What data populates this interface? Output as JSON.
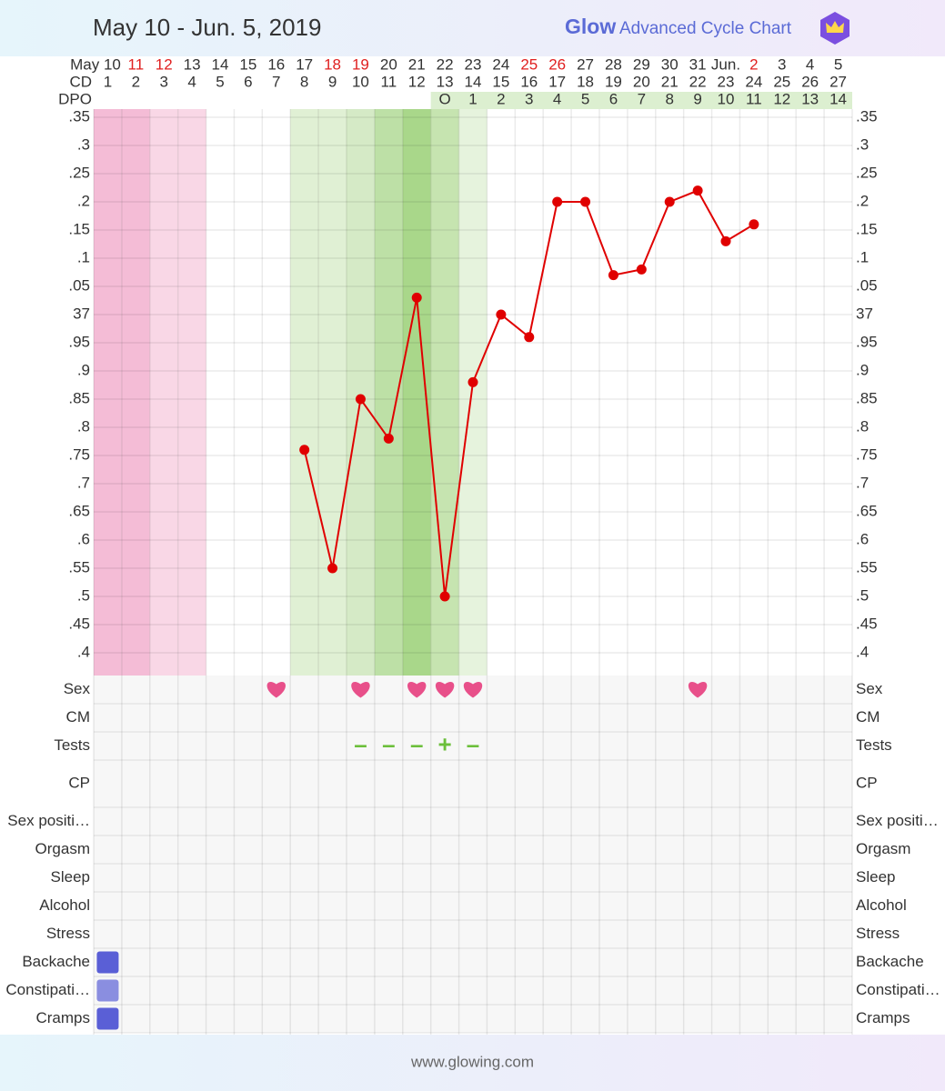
{
  "header": {
    "title": "May 10 - Jun. 5, 2019",
    "logo_brand": "Glow",
    "logo_text": "Advanced Cycle Chart"
  },
  "chart_data": {
    "type": "line",
    "categories": [
      "May 10",
      "11",
      "12",
      "13",
      "14",
      "15",
      "16",
      "17",
      "18",
      "19",
      "20",
      "21",
      "22",
      "23",
      "24",
      "25",
      "26",
      "27",
      "28",
      "29",
      "30",
      "31",
      "Jun.",
      "2",
      "3",
      "4",
      "5"
    ],
    "category_colors": [
      "#333333",
      "#e02020",
      "#e02020",
      "#333333",
      "#333333",
      "#333333",
      "#333333",
      "#333333",
      "#e02020",
      "#e02020",
      "#333333",
      "#333333",
      "#333333",
      "#333333",
      "#333333",
      "#e02020",
      "#e02020",
      "#333333",
      "#333333",
      "#333333",
      "#333333",
      "#333333",
      "#333333",
      "#e02020",
      "#333333",
      "#333333",
      "#333333"
    ],
    "cd_label": "CD",
    "cd": [
      1,
      2,
      3,
      4,
      5,
      6,
      7,
      8,
      9,
      10,
      11,
      12,
      13,
      14,
      15,
      16,
      17,
      18,
      19,
      20,
      21,
      22,
      23,
      24,
      25,
      26,
      27
    ],
    "dpo_label": "DPO",
    "dpo": [
      null,
      null,
      null,
      null,
      null,
      null,
      null,
      null,
      null,
      null,
      null,
      null,
      "O",
      1,
      2,
      3,
      4,
      5,
      6,
      7,
      8,
      9,
      10,
      11,
      12,
      13,
      14
    ],
    "dpo_background": "#dcefd0",
    "series": [
      {
        "color": "#e00000",
        "values": [
          null,
          null,
          null,
          null,
          null,
          null,
          null,
          36.76,
          36.55,
          36.85,
          36.78,
          37.03,
          36.5,
          36.88,
          37.0,
          36.96,
          37.2,
          37.2,
          37.07,
          37.08,
          37.2,
          37.22,
          37.13,
          37.16,
          null,
          null,
          null
        ]
      }
    ],
    "ylim": [
      36.35,
      37.35
    ],
    "yticks": [
      {
        "value": 37.35,
        "label": ".35"
      },
      {
        "value": 37.3,
        "label": ".3"
      },
      {
        "value": 37.25,
        "label": ".25"
      },
      {
        "value": 37.2,
        "label": ".2"
      },
      {
        "value": 37.15,
        "label": ".15"
      },
      {
        "value": 37.1,
        "label": ".1"
      },
      {
        "value": 37.05,
        "label": ".05"
      },
      37,
      {
        "value": 36.95,
        "label": ".95"
      },
      {
        "value": 36.9,
        "label": ".9"
      },
      {
        "value": 36.85,
        "label": ".85"
      },
      {
        "value": 36.8,
        "label": ".8"
      },
      {
        "value": 36.75,
        "label": ".75"
      },
      {
        "value": 36.7,
        "label": ".7"
      },
      {
        "value": 36.65,
        "label": ".65"
      },
      {
        "value": 36.6,
        "label": ".6"
      },
      {
        "value": 36.55,
        "label": ".55"
      },
      {
        "value": 36.5,
        "label": ".5"
      },
      {
        "value": 36.45,
        "label": ".45"
      },
      {
        "value": 36.4,
        "label": ".4"
      }
    ],
    "grid": true,
    "column_backgrounds": [
      "#f4bcd6",
      "#f4bcd6",
      "#f9d7e6",
      "#f9d7e6",
      null,
      null,
      null,
      "#e0f0d4",
      "#e0f0d4",
      "#d5eac6",
      "#bde0a6",
      "#a9d78a",
      "#c6e4b0",
      "#e6f3dd",
      null,
      null,
      null,
      null,
      null,
      null,
      null,
      null,
      null,
      null,
      null,
      null,
      null
    ]
  },
  "log": {
    "rows": [
      {
        "label": "Sex",
        "kind": "heart",
        "color": "#e8508a",
        "cells": [
          null,
          null,
          null,
          null,
          null,
          null,
          true,
          null,
          null,
          true,
          null,
          true,
          true,
          true,
          null,
          null,
          null,
          null,
          null,
          null,
          null,
          true,
          null,
          null,
          null,
          null,
          null
        ]
      },
      {
        "label": "CM"
      },
      {
        "label": "Tests",
        "kind": "text",
        "color": "#6cbf3b",
        "cells": [
          null,
          null,
          null,
          null,
          null,
          null,
          null,
          null,
          null,
          "–",
          "–",
          "–",
          "+",
          "–",
          null,
          null,
          null,
          null,
          null,
          null,
          null,
          null,
          null,
          null,
          null,
          null,
          null
        ]
      },
      {
        "label": "CP"
      },
      {
        "label": "Sex positi…"
      },
      {
        "label": "Orgasm"
      },
      {
        "label": "Sleep"
      },
      {
        "label": "Alcohol"
      },
      {
        "label": "Stress"
      },
      {
        "label": "Backache",
        "kind": "swatch",
        "cells": [
          "#5a5fd6",
          null,
          null,
          null,
          null,
          null,
          null,
          null,
          null,
          null,
          null,
          null,
          null,
          null,
          null,
          null,
          null,
          null,
          null,
          null,
          null,
          null,
          null,
          null,
          null,
          null,
          null
        ]
      },
      {
        "label": "Constipati…",
        "kind": "swatch",
        "cells": [
          "#8a8ee0",
          null,
          null,
          null,
          null,
          null,
          null,
          null,
          null,
          null,
          null,
          null,
          null,
          null,
          null,
          null,
          null,
          null,
          null,
          null,
          null,
          null,
          null,
          null,
          null,
          null,
          null
        ]
      },
      {
        "label": "Cramps",
        "kind": "swatch",
        "cells": [
          "#5a5fd6",
          null,
          null,
          null,
          null,
          null,
          null,
          null,
          null,
          null,
          null,
          null,
          null,
          null,
          null,
          null,
          null,
          null,
          null,
          null,
          null,
          null,
          null,
          null,
          null,
          null,
          null
        ]
      }
    ]
  },
  "footer": {
    "text": "www.glowing.com"
  }
}
